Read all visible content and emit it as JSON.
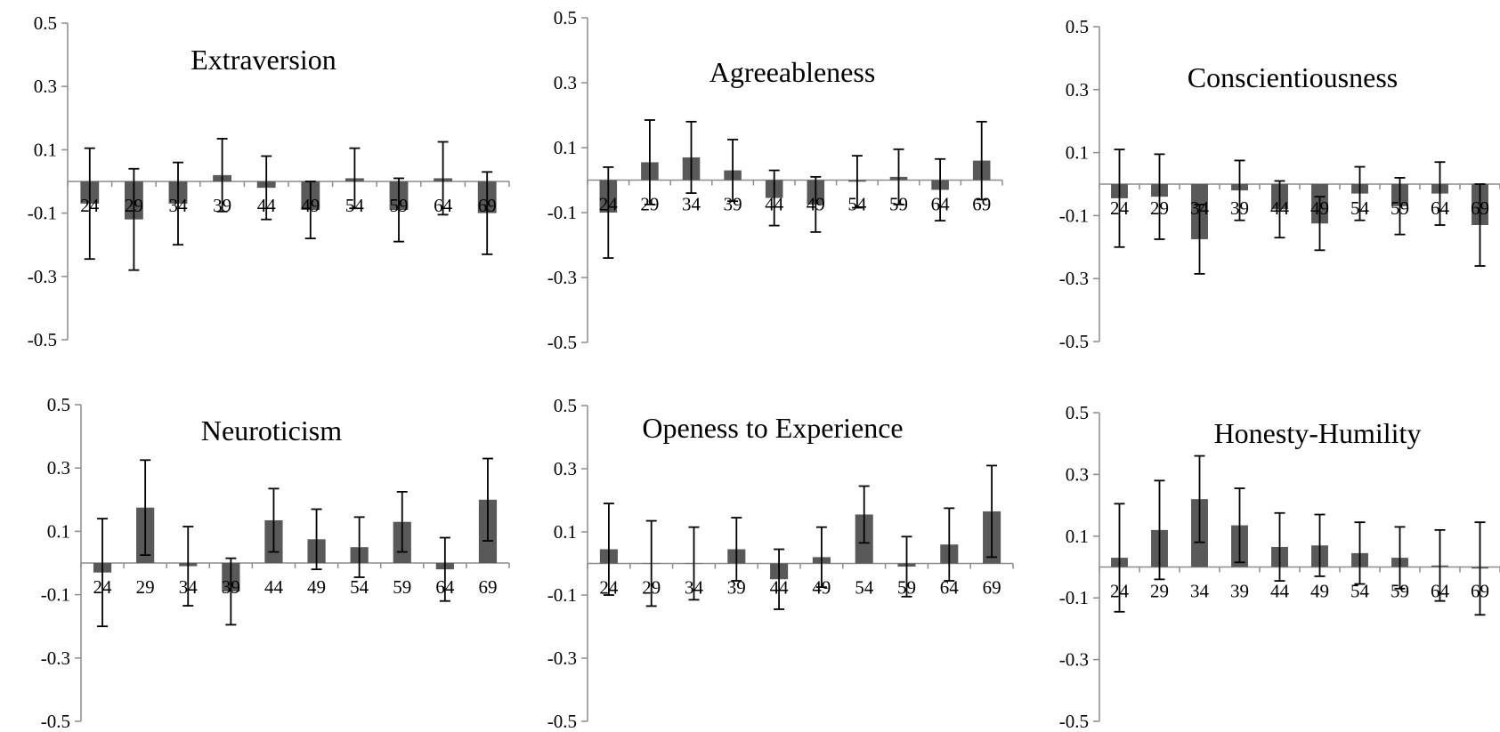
{
  "chart_data": [
    {
      "type": "bar",
      "title": "Extraversion",
      "categories": [
        "24",
        "29",
        "34",
        "39",
        "44",
        "49",
        "54",
        "59",
        "64",
        "69"
      ],
      "values": [
        -0.07,
        -0.12,
        -0.07,
        0.02,
        -0.02,
        -0.09,
        0.01,
        -0.09,
        0.01,
        -0.1
      ],
      "error": [
        0.175,
        0.16,
        0.13,
        0.115,
        0.1,
        0.09,
        0.095,
        0.1,
        0.115,
        0.13
      ],
      "ylim": [
        -0.5,
        0.5
      ],
      "yticks": [
        "-0.5",
        "-0.3",
        "-0.1",
        "0.1",
        "0.3",
        "0.5"
      ],
      "bar_color": "#595959"
    },
    {
      "type": "bar",
      "title": "Agreeableness",
      "categories": [
        "24",
        "29",
        "34",
        "39",
        "44",
        "49",
        "54",
        "59",
        "64",
        "69"
      ],
      "values": [
        -0.1,
        0.055,
        0.07,
        0.03,
        -0.055,
        -0.075,
        -0.005,
        0.01,
        -0.03,
        0.06
      ],
      "error": [
        0.14,
        0.13,
        0.11,
        0.095,
        0.085,
        0.085,
        0.08,
        0.085,
        0.095,
        0.12
      ],
      "ylim": [
        -0.5,
        0.5
      ],
      "yticks": [
        "-0.5",
        "-0.3",
        "-0.1",
        "0.1",
        "0.3",
        "0.5"
      ],
      "bar_color": "#595959"
    },
    {
      "type": "bar",
      "title": "Conscientiousness",
      "categories": [
        "24",
        "29",
        "34",
        "39",
        "44",
        "49",
        "54",
        "59",
        "64",
        "69"
      ],
      "values": [
        -0.045,
        -0.04,
        -0.175,
        -0.02,
        -0.08,
        -0.125,
        -0.03,
        -0.07,
        -0.03,
        -0.13
      ],
      "error": [
        0.155,
        0.135,
        0.11,
        0.095,
        0.09,
        0.085,
        0.085,
        0.09,
        0.1,
        0.13
      ],
      "ylim": [
        -0.5,
        0.5
      ],
      "yticks": [
        "-0.5",
        "-0.3",
        "-0.1",
        "0.1",
        "0.3",
        "0.5"
      ],
      "bar_color": "#595959"
    },
    {
      "type": "bar",
      "title": "Neuroticism",
      "categories": [
        "24",
        "29",
        "34",
        "39",
        "44",
        "49",
        "54",
        "59",
        "64",
        "69"
      ],
      "values": [
        -0.03,
        0.175,
        -0.01,
        -0.09,
        0.135,
        0.075,
        0.05,
        0.13,
        -0.02,
        0.2
      ],
      "error": [
        0.17,
        0.15,
        0.125,
        0.105,
        0.1,
        0.095,
        0.095,
        0.095,
        0.1,
        0.13
      ],
      "ylim": [
        -0.5,
        0.5
      ],
      "yticks": [
        "-0.5",
        "-0.3",
        "-0.1",
        "0.1",
        "0.3",
        "0.5"
      ],
      "bar_color": "#595959"
    },
    {
      "type": "bar",
      "title": "Openess to Experience",
      "categories": [
        "24",
        "29",
        "34",
        "39",
        "44",
        "49",
        "54",
        "59",
        "64",
        "69"
      ],
      "values": [
        0.045,
        0.0,
        0.0,
        0.045,
        -0.05,
        0.02,
        0.155,
        -0.01,
        0.06,
        0.165
      ],
      "error": [
        0.145,
        0.135,
        0.115,
        0.1,
        0.095,
        0.095,
        0.09,
        0.095,
        0.115,
        0.145
      ],
      "ylim": [
        -0.5,
        0.5
      ],
      "yticks": [
        "-0.5",
        "-0.3",
        "-0.1",
        "0.1",
        "0.3",
        "0.5"
      ],
      "bar_color": "#595959"
    },
    {
      "type": "bar",
      "title": "Honesty-Humility",
      "categories": [
        "24",
        "29",
        "34",
        "39",
        "44",
        "49",
        "54",
        "59",
        "64",
        "69"
      ],
      "values": [
        0.03,
        0.12,
        0.22,
        0.135,
        0.065,
        0.07,
        0.045,
        0.03,
        0.005,
        -0.005
      ],
      "error": [
        0.175,
        0.16,
        0.14,
        0.12,
        0.11,
        0.1,
        0.1,
        0.1,
        0.115,
        0.15
      ],
      "ylim": [
        -0.5,
        0.5
      ],
      "yticks": [
        "-0.5",
        "-0.3",
        "-0.1",
        "0.1",
        "0.3",
        "0.5"
      ],
      "bar_color": "#595959"
    }
  ]
}
